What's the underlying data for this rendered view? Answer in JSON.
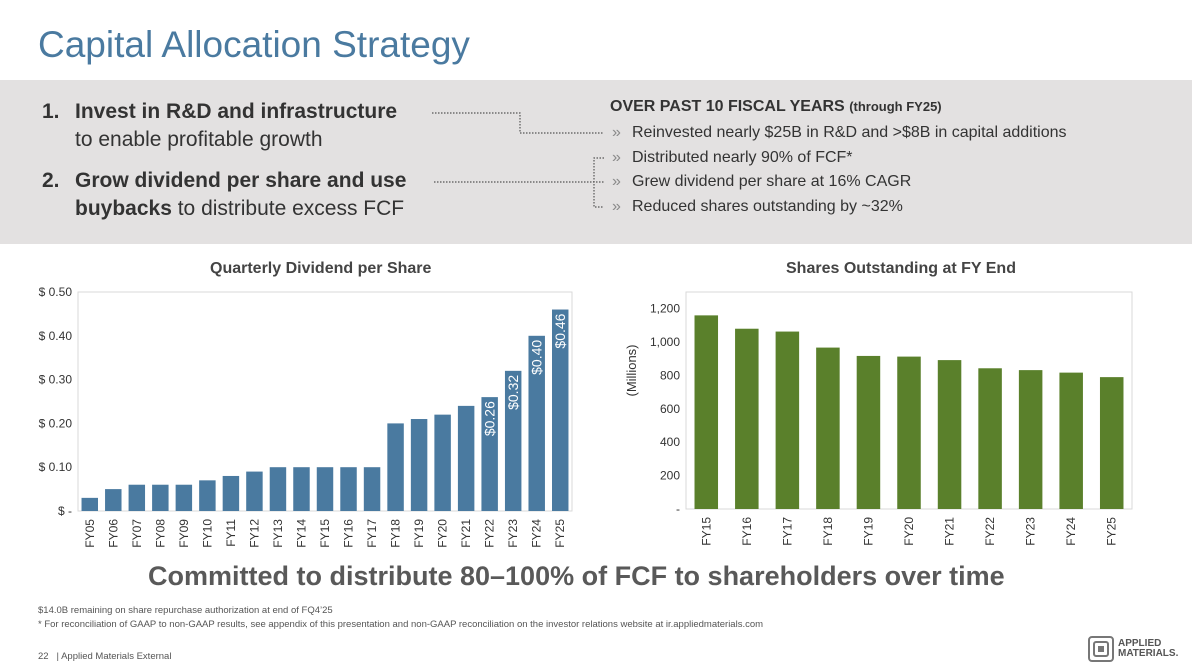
{
  "title": "Capital Allocation Strategy",
  "strategies": [
    {
      "num": "1.",
      "bold": "Invest in R&D and infrastructure",
      "rest": "to enable profitable growth"
    },
    {
      "num": "2.",
      "bold1": "Grow dividend per share and use",
      "bold2": "buybacks",
      "rest": " to distribute excess FCF"
    }
  ],
  "over": {
    "heading": "OVER PAST 10 FISCAL YEARS",
    "sub": "(through FY25)",
    "chevron": "»",
    "bullets": [
      "Reinvested nearly $25B in R&D and >$8B in capital additions",
      "Distributed nearly 90% of FCF*",
      "Grew dividend per share at 16% CAGR",
      "Reduced shares outstanding by ~32%"
    ]
  },
  "colors": {
    "dividend_bar": "#4a7aa0",
    "shares_bar": "#5a802b",
    "title": "#4a7aa0"
  },
  "chart_data": [
    {
      "type": "bar",
      "title": "Quarterly Dividend per Share",
      "categories": [
        "FY05",
        "FY06",
        "FY07",
        "FY08",
        "FY09",
        "FY10",
        "FY11",
        "FY12",
        "FY13",
        "FY14",
        "FY15",
        "FY16",
        "FY17",
        "FY18",
        "FY19",
        "FY20",
        "FY21",
        "FY22",
        "FY23",
        "FY24",
        "FY25"
      ],
      "values": [
        0.03,
        0.05,
        0.06,
        0.06,
        0.06,
        0.07,
        0.08,
        0.09,
        0.1,
        0.1,
        0.1,
        0.1,
        0.1,
        0.2,
        0.21,
        0.22,
        0.24,
        0.26,
        0.32,
        0.4,
        0.46
      ],
      "data_labels": {
        "FY22": "$0.26",
        "FY23": "$0.32",
        "FY24": "$0.40",
        "FY25": "$0.46"
      },
      "yticks": [
        0,
        0.1,
        0.2,
        0.3,
        0.4,
        0.5
      ],
      "ytick_labels": [
        "$ -",
        "$ 0.10",
        "$ 0.20",
        "$ 0.30",
        "$ 0.40",
        "$ 0.50"
      ],
      "ylim": [
        0,
        0.5
      ],
      "xlabel": "",
      "ylabel": ""
    },
    {
      "type": "bar",
      "title": "Shares Outstanding at FY End",
      "categories": [
        "FY15",
        "FY16",
        "FY17",
        "FY18",
        "FY19",
        "FY20",
        "FY21",
        "FY22",
        "FY23",
        "FY24",
        "FY25"
      ],
      "values": [
        1160,
        1080,
        1063,
        967,
        917,
        913,
        892,
        843,
        832,
        817,
        790
      ],
      "yticks": [
        0,
        200,
        400,
        600,
        800,
        1000,
        1200
      ],
      "ytick_labels": [
        "-",
        "200",
        "400",
        "600",
        "800",
        "1,000",
        "1,200"
      ],
      "ylim": [
        0,
        1300
      ],
      "xlabel": "",
      "ylabel": "(Millions)"
    }
  ],
  "tagline": "Committed to distribute 80–100% of FCF to shareholders over time",
  "footnotes": [
    "$14.0B remaining on share repurchase authorization at end of FQ4’25",
    "* For reconciliation of GAAP to non-GAAP results, see appendix of this presentation and non-GAAP reconciliation on the investor relations website at ir.appliedmaterials.com"
  ],
  "page": {
    "number": "22",
    "label": "|  Applied Materials External"
  },
  "logo": {
    "line1": "APPLIED",
    "line2": "MATERIALS."
  }
}
